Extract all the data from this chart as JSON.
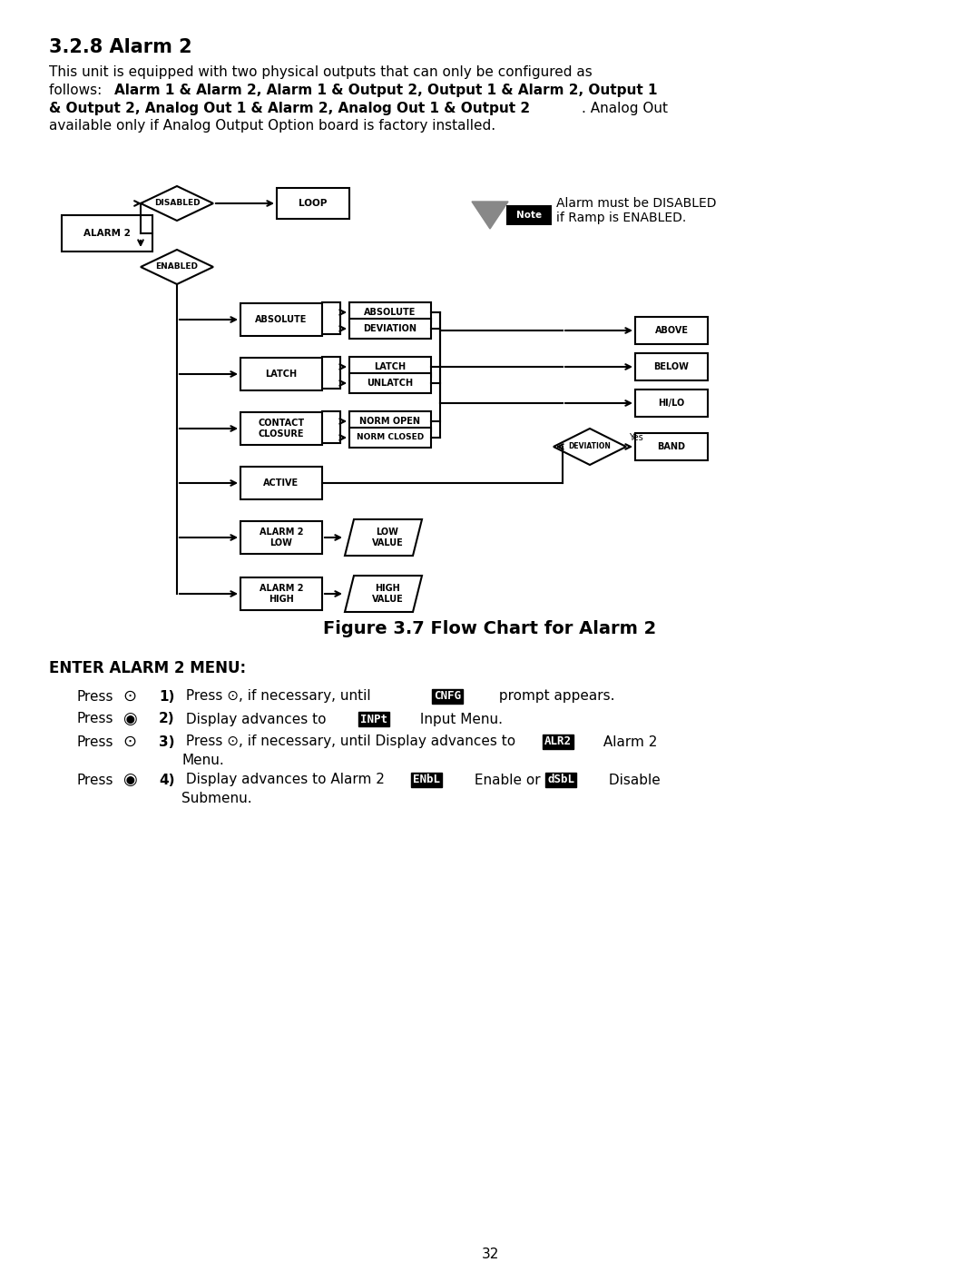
{
  "title": "3.2.8 Alarm 2",
  "fig_caption": "Figure 3.7 Flow Chart for Alarm 2",
  "intro_text_normal": "This unit is equipped with two physical outputs that can only be configured as\nfollows: ",
  "intro_bold": "Alarm 1 & Alarm 2, Alarm 1 & Output 2, Output 1 & Alarm 2, Output 1\n& Output 2, Analog Out 1 & Alarm 2, Analog Out 1 & Output 2",
  "intro_text_end": ". Analog Out\navailable only if Analog Output Option board is factory installed.",
  "note_text": "Alarm must be DISABLED\nif Ramp is ENABLED.",
  "enter_menu_title": "ENTER ALARM 2 MENU:",
  "steps": [
    {
      "press": "⊙",
      "num": "1",
      "text": "Press ⊙, if necessary, until ",
      "code": "CNFG",
      "text2": " prompt appears."
    },
    {
      "press": "◉",
      "num": "2",
      "text": "Display advances to ",
      "code": "INPt",
      "text2": " Input Menu."
    },
    {
      "press": "⊙",
      "num": "3",
      "text": "Press ⊙, if necessary, until Display advances to ",
      "code": "ALR2",
      "text2": " Alarm 2\nMenu."
    },
    {
      "press": "◉",
      "num": "4",
      "text": "Display advances to Alarm 2 ",
      "code": "ENbL",
      "text2": " Enable or ",
      "code2": "dSbL",
      "text3": " Disable\nSubmenu."
    }
  ],
  "page_num": "32",
  "bg_color": "#ffffff",
  "box_color": "#000000",
  "text_color": "#000000"
}
